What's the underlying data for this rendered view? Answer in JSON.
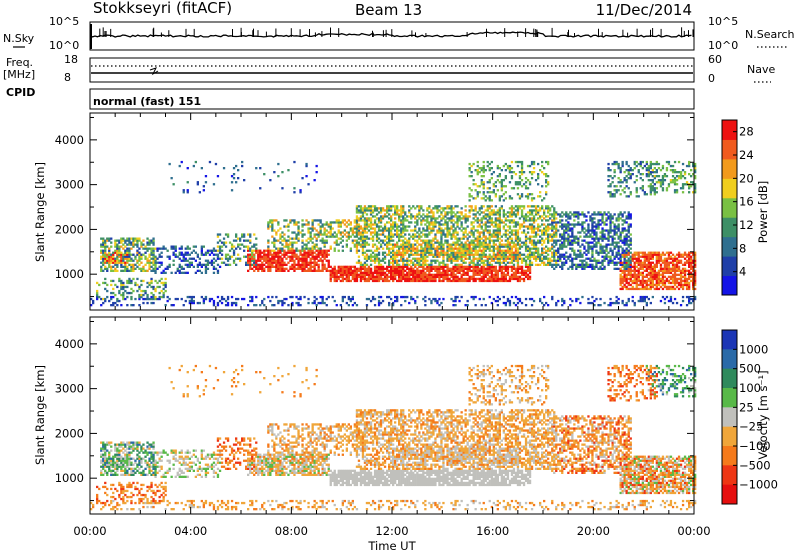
{
  "header": {
    "title": "Stokkseyri (fitACF)",
    "beam": "Beam 13",
    "date": "11/Dec/2014"
  },
  "strips": {
    "nsky_label": "N.Sky",
    "nsky_ticks": [
      "10^5",
      "10^0"
    ],
    "nsearch_label": "N.Search",
    "nsearch_ticks": [
      "10^5",
      "10^0"
    ],
    "freq_label_1": "Freq.",
    "freq_label_2": "[MHz]",
    "freq_ticks": [
      "18",
      "8"
    ],
    "nave_label": "Nave",
    "nave_ticks": [
      "60",
      "0"
    ],
    "cpid_label": "CPID",
    "cpid_value": "normal (fast) 151"
  },
  "colors": {
    "power_scale": [
      "#1414e6",
      "#1f3fa8",
      "#2f6f8f",
      "#3d8f66",
      "#79c043",
      "#f0ce1e",
      "#f29a1c",
      "#f05a1e",
      "#ee1111"
    ],
    "velocity_scale": [
      "#1b35b5",
      "#2a6aa8",
      "#2f8a5c",
      "#58b948",
      "#c0c0bc",
      "#f0a63a",
      "#f57a1b",
      "#ee3614",
      "#e60f0f"
    ]
  },
  "chart_data": [
    {
      "type": "heatmap",
      "name": "power-panel",
      "xlabel": "",
      "ylabel": "Slant Range [km]",
      "ylim": [
        200,
        4600
      ],
      "xlim": [
        "00:00",
        "24:00"
      ],
      "yticks": [
        "1000",
        "2000",
        "3000",
        "4000"
      ],
      "colorbar": {
        "label": "Power [dB]",
        "range": [
          0,
          30
        ],
        "ticks": [
          "4",
          "8",
          "12",
          "16",
          "20",
          "24",
          "28"
        ]
      }
    },
    {
      "type": "heatmap",
      "name": "velocity-panel",
      "xlabel": "Time UT",
      "ylabel": "Slant Range [km]",
      "ylim": [
        200,
        4600
      ],
      "xlim": [
        "00:00",
        "24:00"
      ],
      "xticks": [
        "00:00",
        "04:00",
        "08:00",
        "12:00",
        "16:00",
        "20:00",
        "00:00"
      ],
      "yticks": [
        "1000",
        "2000",
        "3000",
        "4000"
      ],
      "colorbar": {
        "label": "Velocity [m s⁻¹]",
        "ticks": [
          "1000",
          "500",
          "100",
          "25",
          "−25",
          "−100",
          "−500",
          "−1000"
        ]
      }
    }
  ]
}
